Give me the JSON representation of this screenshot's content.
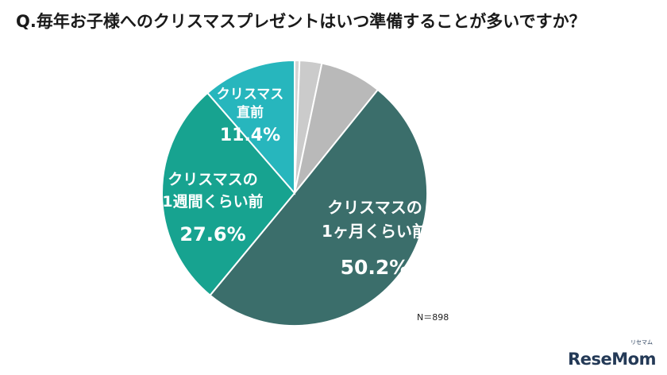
{
  "question": "Q.毎年お子様へのクリスマスプレゼントはいつ準備することが多いですか？",
  "sample_note": "N＝898",
  "brand": "ReseMom",
  "brand_kana": "リセマム",
  "chart_data": {
    "type": "pie",
    "title": "Q.毎年お子様へのクリスマスプレゼントはいつ準備することが多いですか？",
    "start_angle_deg": 0,
    "direction": "clockwise",
    "slices": [
      {
        "label_lines": [
          "",
          ""
        ],
        "value": 0.6,
        "color": "#d4d4d4"
      },
      {
        "label_lines": [
          "",
          ""
        ],
        "value": 2.7,
        "color": "#cbcbcb"
      },
      {
        "label_lines": [
          "",
          ""
        ],
        "value": 7.5,
        "color": "#b9b9b9"
      },
      {
        "label_lines": [
          "クリスマスの",
          "1ヶ月くらい前"
        ],
        "value": 50.2,
        "value_text": "50.2%",
        "color": "#3b6e6b"
      },
      {
        "label_lines": [
          "クリスマスの",
          "1週間くらい前"
        ],
        "value": 27.6,
        "value_text": "27.6%",
        "color": "#17a390"
      },
      {
        "label_lines": [
          "クリスマス",
          "直前"
        ],
        "value": 11.4,
        "value_text": "11.4%",
        "color": "#27b6bd"
      }
    ]
  }
}
